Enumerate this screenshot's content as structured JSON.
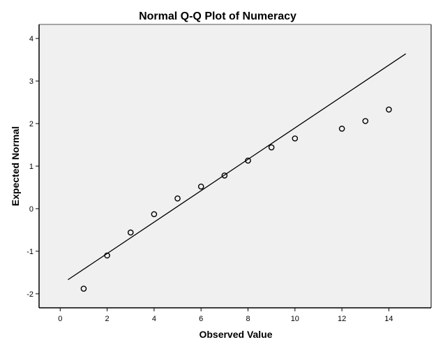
{
  "chart_data": {
    "type": "scatter",
    "title": "Normal Q-Q Plot of Numeracy",
    "xlabel": "Observed Value",
    "ylabel": "Expected Normal",
    "xlim": [
      -0.9,
      15.8
    ],
    "ylim": [
      -2.33,
      4.33
    ],
    "x_ticks": [
      0,
      2,
      4,
      6,
      8,
      10,
      12,
      14
    ],
    "y_ticks": [
      -2,
      -1,
      0,
      1,
      2,
      3,
      4
    ],
    "grid": false,
    "legend": null,
    "points": [
      {
        "x": 1,
        "y": -1.88
      },
      {
        "x": 2,
        "y": -1.1
      },
      {
        "x": 3,
        "y": -0.56
      },
      {
        "x": 4,
        "y": -0.13
      },
      {
        "x": 5,
        "y": 0.24
      },
      {
        "x": 6,
        "y": 0.52
      },
      {
        "x": 7,
        "y": 0.78
      },
      {
        "x": 8,
        "y": 1.13
      },
      {
        "x": 9,
        "y": 1.44
      },
      {
        "x": 10,
        "y": 1.65
      },
      {
        "x": 12,
        "y": 1.88
      },
      {
        "x": 13,
        "y": 2.06
      },
      {
        "x": 14,
        "y": 2.33
      }
    ],
    "reference_line": {
      "x1": 0.33,
      "y1": -1.67,
      "x2": 14.72,
      "y2": 3.64
    },
    "colors": {
      "plot_background": "#f0f0f0",
      "page_background": "#ffffff",
      "marker": "#000000",
      "line": "#000000"
    }
  }
}
